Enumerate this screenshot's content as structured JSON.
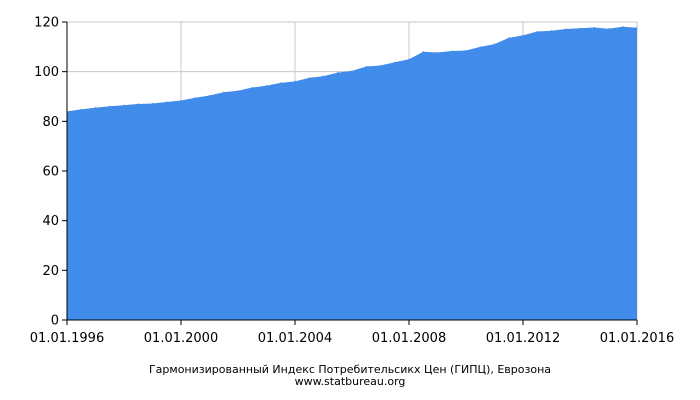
{
  "chart_data": {
    "type": "area",
    "title": "Гармонизированный Индекс Потребительсикх Цен (ГИПЦ), Еврозона",
    "subtitle": "www.statbureau.org",
    "xlabel": "",
    "ylabel": "",
    "x_tick_labels": [
      "01.01.1996",
      "01.01.2000",
      "01.01.2004",
      "01.01.2008",
      "01.01.2012",
      "01.01.2016"
    ],
    "x_ticks": [
      1996,
      2000,
      2004,
      2008,
      2012,
      2016
    ],
    "y_ticks": [
      0,
      20,
      40,
      60,
      80,
      100,
      120
    ],
    "xlim": [
      1996,
      2016
    ],
    "ylim": [
      0,
      120
    ],
    "grid": true,
    "fill_color": "#418beb",
    "series": [
      {
        "x": [
          1996.0,
          1996.5,
          1997.0,
          1997.5,
          1998.0,
          1998.5,
          1999.0,
          1999.5,
          2000.0,
          2000.5,
          2001.0,
          2001.5,
          2002.0,
          2002.5,
          2003.0,
          2003.5,
          2004.0,
          2004.5,
          2005.0,
          2005.5,
          2006.0,
          2006.5,
          2007.0,
          2007.5,
          2008.0,
          2008.5,
          2009.0,
          2009.5,
          2010.0,
          2010.5,
          2011.0,
          2011.5,
          2012.0,
          2012.5,
          2013.0,
          2013.5,
          2014.0,
          2014.5,
          2015.0,
          2015.5,
          2016.0
        ],
        "values": [
          84,
          84.8,
          85.5,
          86.1,
          86.5,
          87.0,
          87.2,
          87.8,
          88.4,
          89.5,
          90.4,
          91.7,
          92.3,
          93.6,
          94.4,
          95.5,
          96.1,
          97.5,
          98.2,
          99.6,
          100.3,
          102.1,
          102.5,
          103.8,
          105.0,
          108.0,
          107.7,
          108.3,
          108.5,
          110.0,
          111.1,
          113.6,
          114.6,
          116.2,
          116.5,
          117.2,
          117.5,
          117.8,
          117.3,
          118.1,
          117.7
        ]
      }
    ]
  }
}
